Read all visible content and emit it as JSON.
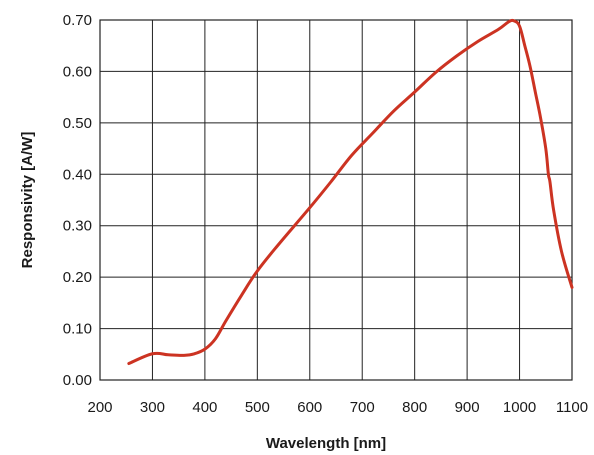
{
  "chart_data": {
    "type": "line",
    "title": "",
    "xlabel": "Wavelength [nm]",
    "ylabel": "Responsivity [A/W]",
    "xlim": [
      200,
      1100
    ],
    "ylim": [
      0,
      0.7
    ],
    "x_ticks": [
      200,
      300,
      400,
      500,
      600,
      700,
      800,
      900,
      1000,
      1100
    ],
    "y_ticks": [
      0.0,
      0.1,
      0.2,
      0.3,
      0.4,
      0.5,
      0.6,
      0.7
    ],
    "x_tick_labels": [
      "200",
      "300",
      "400",
      "500",
      "600",
      "700",
      "800",
      "900",
      "1000",
      "1100"
    ],
    "y_tick_labels": [
      "0.00",
      "0.10",
      "0.20",
      "0.30",
      "0.40",
      "0.50",
      "0.60",
      "0.70"
    ],
    "grid": true,
    "legend": "none",
    "colors": {
      "line": "#cc3322",
      "grid": "#222222",
      "text": "#1a1a1a"
    },
    "series": [
      {
        "x": [
          255,
          300,
          330,
          360,
          380,
          400,
          420,
          440,
          470,
          500,
          540,
          600,
          640,
          680,
          720,
          760,
          800,
          840,
          880,
          920,
          960,
          980,
          990,
          1000,
          1010,
          1020,
          1030,
          1040,
          1050,
          1055,
          1058,
          1065,
          1080,
          1100
        ],
        "y": [
          0.032,
          0.051,
          0.049,
          0.048,
          0.051,
          0.06,
          0.08,
          0.115,
          0.165,
          0.212,
          0.263,
          0.335,
          0.385,
          0.437,
          0.48,
          0.523,
          0.56,
          0.598,
          0.63,
          0.658,
          0.682,
          0.697,
          0.698,
          0.688,
          0.65,
          0.61,
          0.56,
          0.51,
          0.45,
          0.4,
          0.385,
          0.33,
          0.25,
          0.18
        ]
      }
    ]
  }
}
